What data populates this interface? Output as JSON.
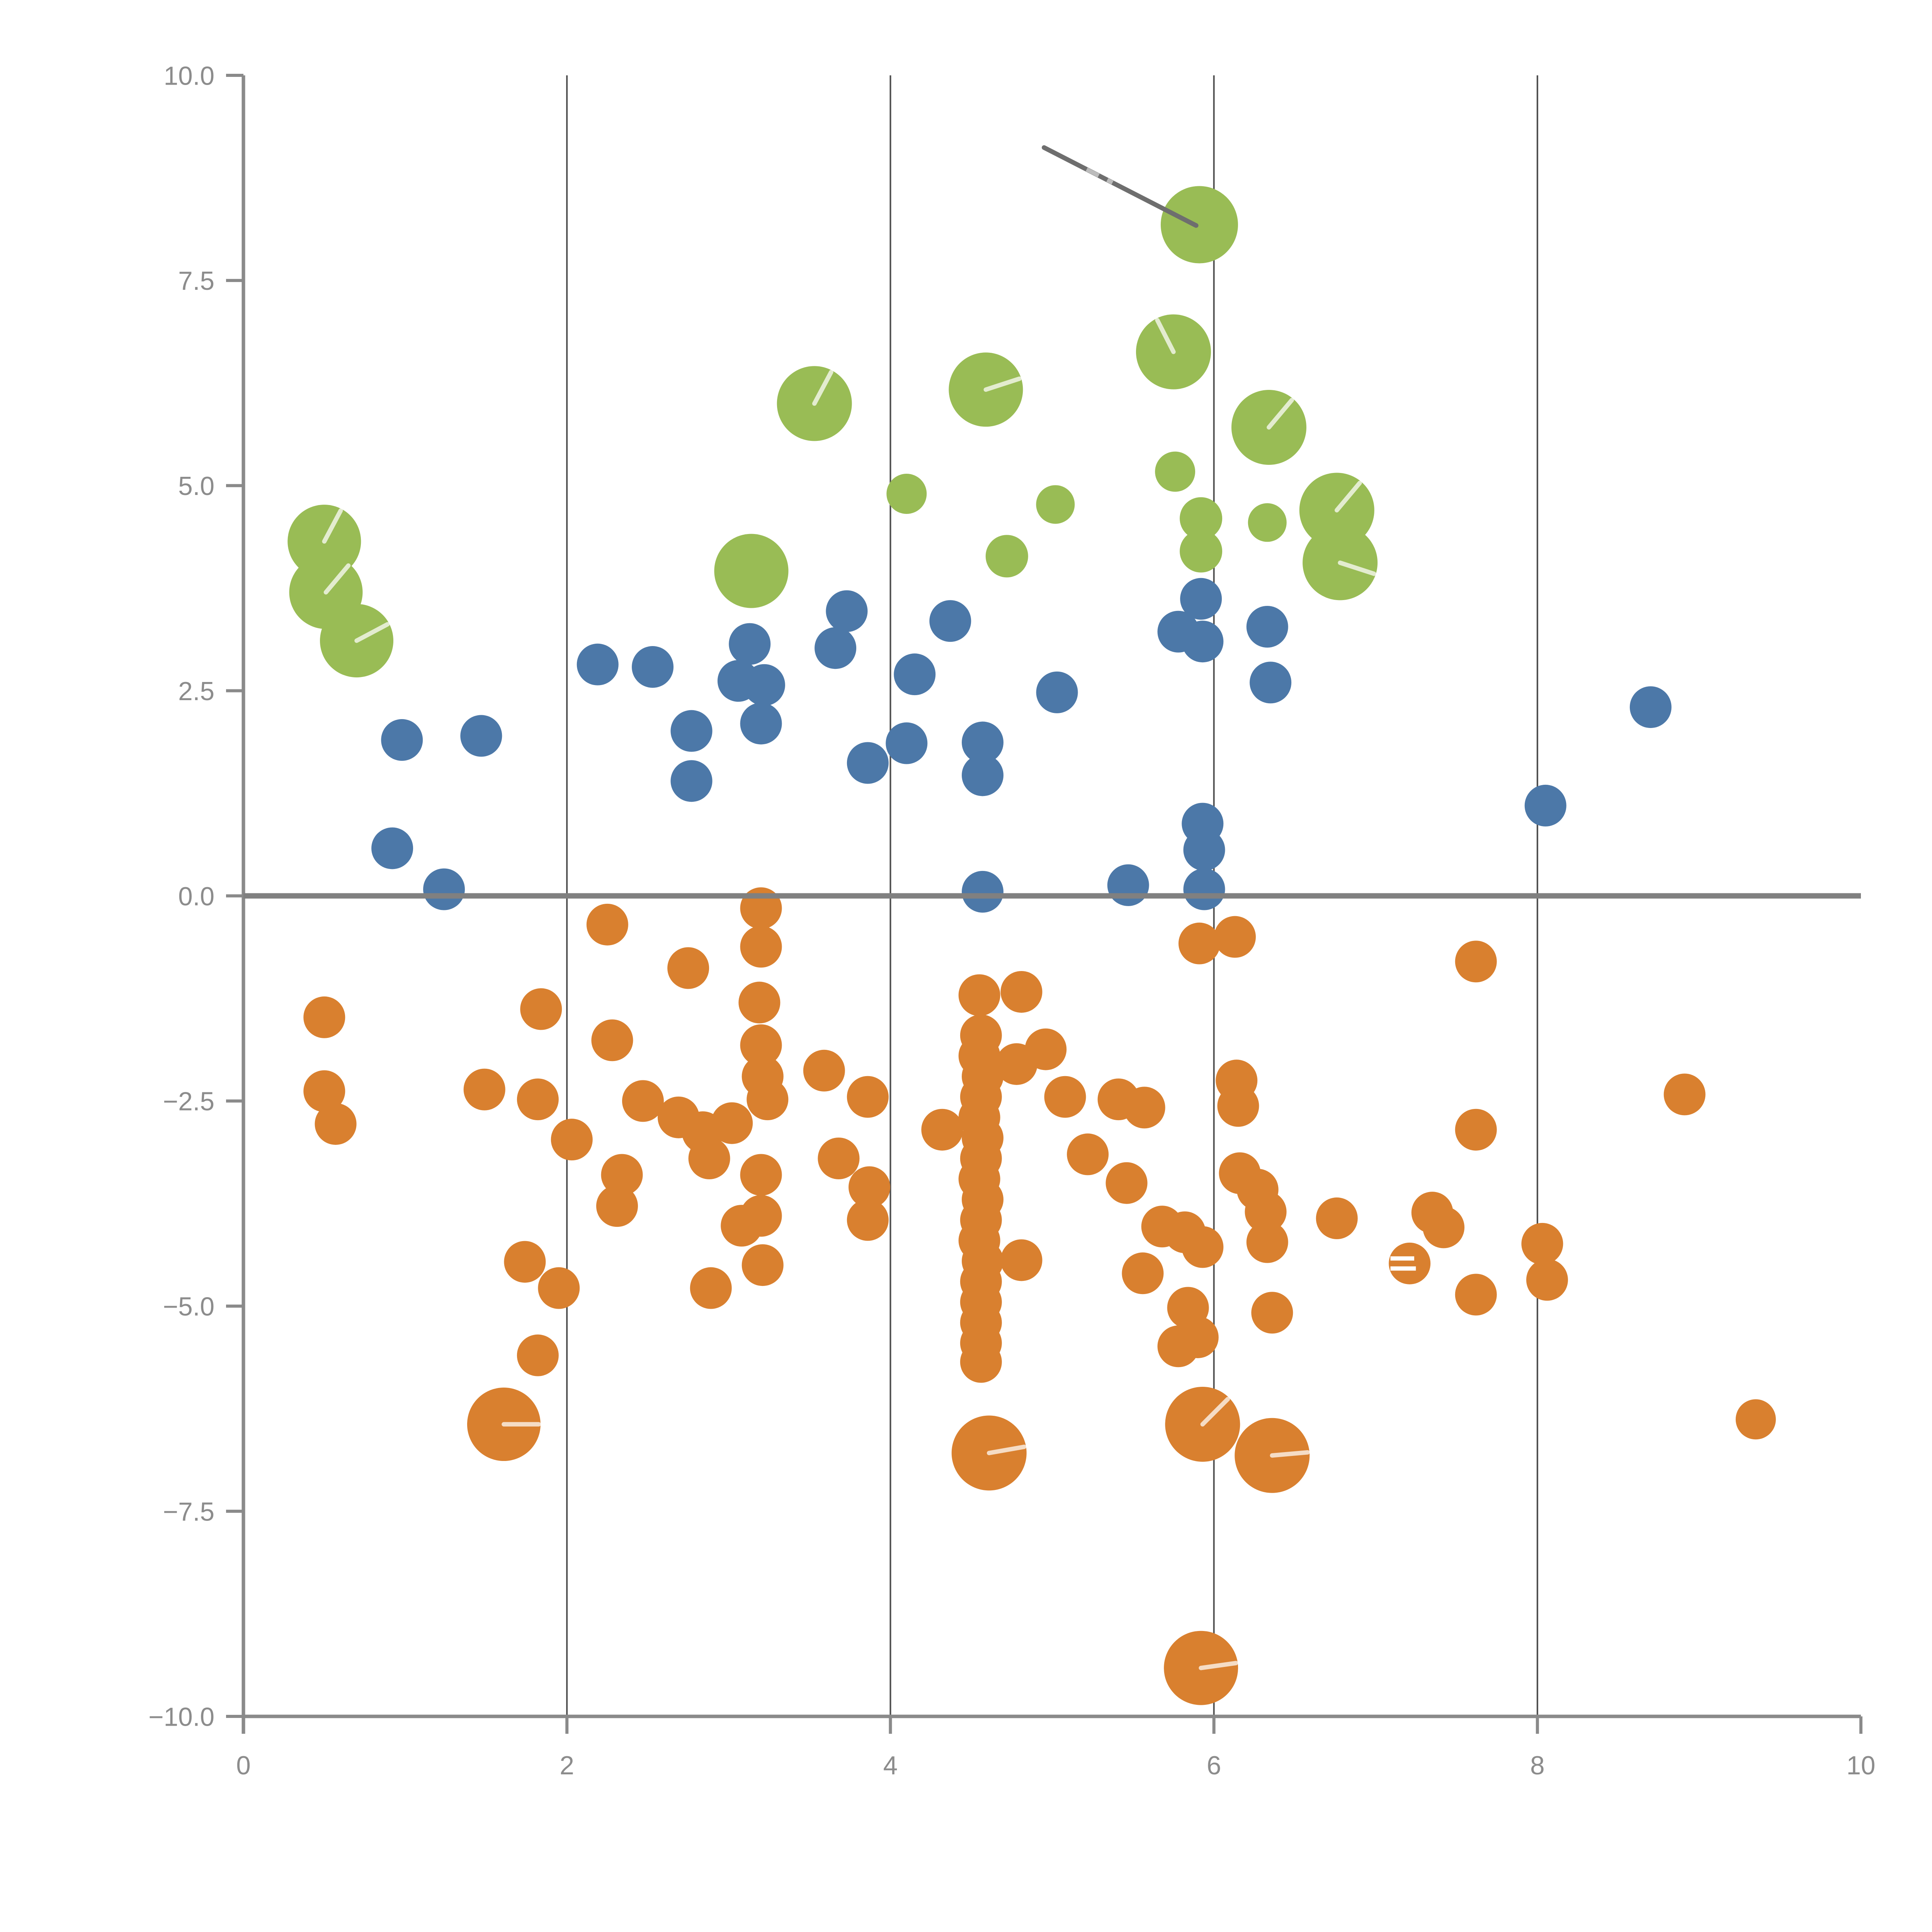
{
  "chart_data": {
    "type": "scatter",
    "title": "",
    "xlabel": "",
    "ylabel": "",
    "xlim": [
      0,
      10
    ],
    "ylim": [
      -10,
      10
    ],
    "x_ticks": {
      "values": [
        0,
        2,
        4,
        6,
        8,
        10
      ],
      "labels": [
        "0",
        "2",
        "4",
        "6",
        "8",
        "10"
      ]
    },
    "y_ticks": {
      "values": [
        10,
        7.5,
        5,
        2.5,
        0,
        -2.5,
        -5,
        -7.5,
        -10
      ],
      "labels": [
        "10.0",
        "7.5",
        "5.0",
        "2.5",
        "0.0",
        "−2.5",
        "−5.0",
        "−7.5",
        "−10.0"
      ]
    },
    "gridlines_x": [
      2,
      4,
      6,
      8
    ],
    "grid_on": true,
    "legend": "none",
    "zero_line_y": 0,
    "annotation_line": {
      "x1": 4.95,
      "y1": 9.12,
      "x2": 5.89,
      "y2": 8.17,
      "light_segment": [
        0.28,
        0.45
      ]
    },
    "colors": {
      "green": "#99BC55",
      "blue": "#4C78A8",
      "orange": "#D9802F",
      "axis": "#8a8a8a",
      "tick_label": "#8c8c8c",
      "gridline": "#4d4d4d",
      "zero_line": "#808080",
      "annotation": "#6e6e6e",
      "annotation_light": "#bcbcbc",
      "slash": "rgba(255,255,255,0.72)"
    },
    "series": [
      {
        "name": "green",
        "color": "#99BC55",
        "points": [
          [
            0.5,
            4.32,
            95,
            62
          ],
          [
            0.51,
            3.7,
            95,
            50
          ],
          [
            0.7,
            3.11,
            95,
            28
          ],
          [
            3.53,
            6.0,
            97,
            62
          ],
          [
            4.59,
            6.17,
            96,
            18
          ],
          [
            3.14,
            3.96,
            96
          ],
          [
            4.1,
            4.9,
            52
          ],
          [
            4.72,
            4.14,
            55
          ],
          [
            5.02,
            4.77,
            50
          ],
          [
            5.75,
            6.63,
            97,
            117
          ],
          [
            5.76,
            5.17,
            52
          ],
          [
            5.91,
            8.18,
            100
          ],
          [
            5.92,
            4.6,
            55
          ],
          [
            5.92,
            4.2,
            55
          ],
          [
            6.34,
            5.71,
            97,
            50
          ],
          [
            6.33,
            4.55,
            50
          ],
          [
            6.76,
            4.7,
            97,
            50
          ],
          [
            6.78,
            4.06,
            97,
            -18
          ]
        ]
      },
      {
        "name": "blue",
        "color": "#4C78A8",
        "points": [
          [
            0.92,
            0.58,
            54
          ],
          [
            0.98,
            1.9,
            54
          ],
          [
            1.24,
            0.08,
            54
          ],
          [
            1.47,
            1.95,
            54
          ],
          [
            2.19,
            2.82,
            54
          ],
          [
            2.53,
            2.79,
            54
          ],
          [
            2.77,
            2.01,
            54
          ],
          [
            2.77,
            1.4,
            54
          ],
          [
            3.06,
            2.62,
            54
          ],
          [
            3.13,
            3.07,
            54
          ],
          [
            3.22,
            2.57,
            54
          ],
          [
            3.2,
            2.1,
            54
          ],
          [
            3.66,
            3.02,
            54
          ],
          [
            3.73,
            3.47,
            54
          ],
          [
            3.86,
            1.62,
            54
          ],
          [
            4.1,
            1.86,
            54
          ],
          [
            4.15,
            2.7,
            54
          ],
          [
            4.37,
            3.35,
            54
          ],
          [
            4.57,
            1.87,
            54
          ],
          [
            4.57,
            1.47,
            54
          ],
          [
            4.57,
            0.05,
            54
          ],
          [
            5.03,
            2.48,
            54
          ],
          [
            5.47,
            0.13,
            54
          ],
          [
            5.78,
            3.22,
            54
          ],
          [
            5.92,
            3.62,
            54
          ],
          [
            5.93,
            3.1,
            54
          ],
          [
            5.93,
            0.88,
            54
          ],
          [
            5.94,
            0.56,
            54
          ],
          [
            5.94,
            0.08,
            54
          ],
          [
            6.33,
            3.28,
            54
          ],
          [
            6.35,
            2.6,
            54
          ],
          [
            8.05,
            1.1,
            54
          ],
          [
            8.7,
            2.3,
            54
          ]
        ]
      },
      {
        "name": "orange",
        "color": "#D9802F",
        "points": [
          [
            0.5,
            -1.48,
            54
          ],
          [
            0.5,
            -2.38,
            54
          ],
          [
            0.57,
            -2.78,
            54
          ],
          [
            1.49,
            -2.36,
            54
          ],
          [
            1.84,
            -1.38,
            54
          ],
          [
            1.82,
            -2.48,
            54
          ],
          [
            2.03,
            -2.97,
            54
          ],
          [
            1.74,
            -4.46,
            54
          ],
          [
            1.95,
            -4.78,
            54
          ],
          [
            1.82,
            -5.6,
            54
          ],
          [
            1.61,
            -6.44,
            95,
            0
          ],
          [
            2.25,
            -0.35,
            54
          ],
          [
            2.28,
            -1.76,
            54
          ],
          [
            2.47,
            -2.5,
            54
          ],
          [
            2.69,
            -2.7,
            54
          ],
          [
            2.75,
            -0.88,
            54
          ],
          [
            2.84,
            -2.88,
            54
          ],
          [
            3.02,
            -2.77,
            54
          ],
          [
            2.88,
            -3.2,
            54
          ],
          [
            2.34,
            -3.4,
            54
          ],
          [
            2.31,
            -3.78,
            54
          ],
          [
            2.89,
            -4.78,
            54
          ],
          [
            3.2,
            -0.15,
            54
          ],
          [
            3.2,
            -0.62,
            54
          ],
          [
            3.19,
            -1.3,
            54
          ],
          [
            3.2,
            -1.82,
            54
          ],
          [
            3.21,
            -2.2,
            54
          ],
          [
            3.24,
            -2.48,
            54
          ],
          [
            3.2,
            -3.4,
            54
          ],
          [
            3.2,
            -3.9,
            54
          ],
          [
            3.08,
            -4.02,
            54
          ],
          [
            3.21,
            -4.5,
            54
          ],
          [
            3.59,
            -2.13,
            54
          ],
          [
            3.68,
            -3.2,
            54
          ],
          [
            3.86,
            -2.45,
            54
          ],
          [
            3.87,
            -3.55,
            54
          ],
          [
            3.86,
            -3.95,
            54
          ],
          [
            4.32,
            -2.85,
            54
          ],
          [
            4.55,
            -1.21,
            54
          ],
          [
            4.81,
            -1.17,
            54
          ],
          [
            4.78,
            -2.05,
            54
          ],
          [
            4.56,
            -1.7,
            54
          ],
          [
            4.55,
            -1.95,
            54
          ],
          [
            4.57,
            -2.2,
            54
          ],
          [
            4.56,
            -2.45,
            54
          ],
          [
            4.55,
            -2.7,
            54
          ],
          [
            4.57,
            -2.95,
            54
          ],
          [
            4.56,
            -3.2,
            54
          ],
          [
            4.55,
            -3.45,
            54
          ],
          [
            4.57,
            -3.7,
            54
          ],
          [
            4.56,
            -3.95,
            54
          ],
          [
            4.55,
            -4.2,
            54
          ],
          [
            4.57,
            -4.45,
            54
          ],
          [
            4.56,
            -4.7,
            54
          ],
          [
            4.56,
            -4.95,
            54
          ],
          [
            4.56,
            -5.2,
            54
          ],
          [
            4.56,
            -5.45,
            54
          ],
          [
            4.56,
            -5.68,
            54
          ],
          [
            4.81,
            -4.44,
            54
          ],
          [
            4.96,
            -1.87,
            54
          ],
          [
            5.08,
            -2.45,
            54
          ],
          [
            5.22,
            -3.15,
            54
          ],
          [
            5.41,
            -2.48,
            54
          ],
          [
            5.57,
            -2.58,
            54
          ],
          [
            5.46,
            -3.5,
            54
          ],
          [
            5.56,
            -4.6,
            54
          ],
          [
            5.68,
            -4.03,
            54
          ],
          [
            5.82,
            -4.1,
            54
          ],
          [
            5.93,
            -4.28,
            54
          ],
          [
            5.84,
            -5.02,
            54
          ],
          [
            5.9,
            -5.38,
            54
          ],
          [
            5.78,
            -5.49,
            54
          ],
          [
            5.91,
            -0.58,
            54
          ],
          [
            6.13,
            -0.5,
            54
          ],
          [
            6.14,
            -2.25,
            54
          ],
          [
            6.15,
            -2.56,
            54
          ],
          [
            6.16,
            -3.38,
            54
          ],
          [
            6.27,
            -3.58,
            54
          ],
          [
            6.32,
            -3.85,
            54
          ],
          [
            6.33,
            -4.22,
            54
          ],
          [
            6.36,
            -5.08,
            54
          ],
          [
            6.76,
            -3.93,
            54
          ],
          [
            4.61,
            -6.79,
            97,
            10
          ],
          [
            5.93,
            -6.44,
            97,
            45
          ],
          [
            6.36,
            -6.82,
            97,
            5
          ],
          [
            5.92,
            -9.41,
            96,
            8
          ],
          [
            7.21,
            -4.48,
            54,
            "stripes"
          ],
          [
            7.35,
            -3.86,
            54
          ],
          [
            7.42,
            -4.04,
            54
          ],
          [
            7.62,
            -0.8,
            54
          ],
          [
            7.62,
            -2.85,
            54
          ],
          [
            7.62,
            -4.86,
            54
          ],
          [
            8.03,
            -4.24,
            54
          ],
          [
            8.06,
            -4.68,
            54
          ],
          [
            8.91,
            -2.42,
            54
          ],
          [
            9.35,
            -6.38,
            52
          ]
        ]
      }
    ]
  }
}
